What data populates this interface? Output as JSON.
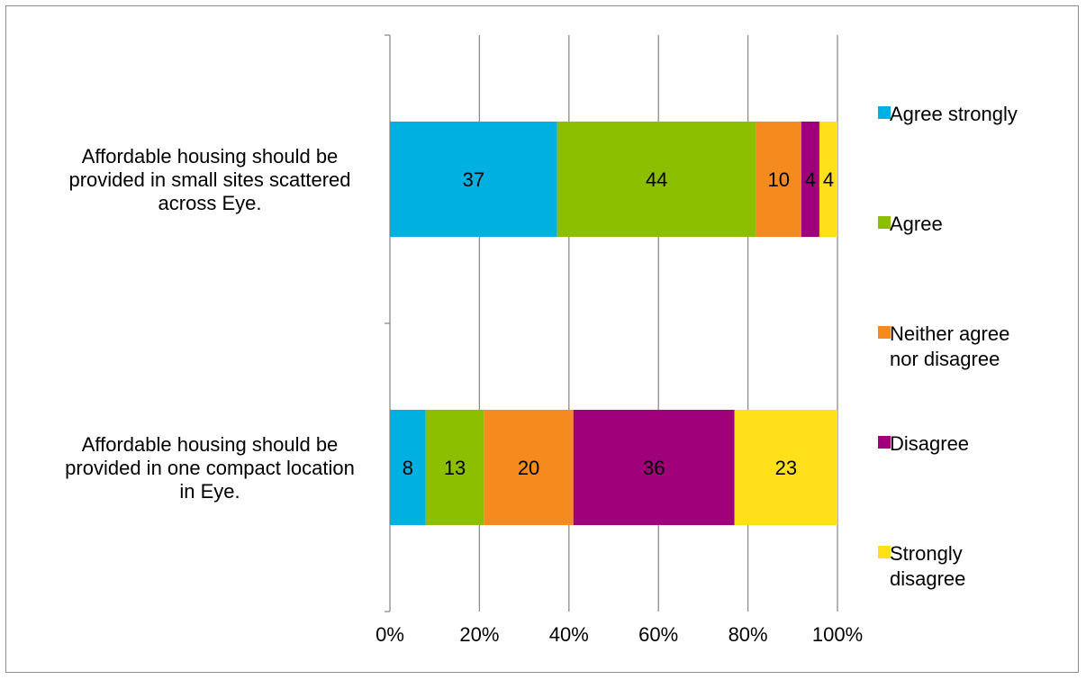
{
  "chart_data": {
    "type": "bar",
    "orientation": "horizontal",
    "stacked": "percent",
    "categories": [
      "Affordable housing should be provided in small sites scattered across Eye.",
      "Affordable housing should be provided in one compact location in Eye."
    ],
    "category_lines": [
      [
        "Affordable housing should be",
        "provided in small sites scattered",
        "across Eye."
      ],
      [
        "Affordable housing should be",
        "provided in one compact location",
        "in Eye."
      ]
    ],
    "series": [
      {
        "name": "Agree strongly",
        "legend_lines": [
          "Agree strongly"
        ],
        "color": "#00b0e0",
        "values": [
          37,
          8
        ]
      },
      {
        "name": "Agree",
        "legend_lines": [
          "Agree"
        ],
        "color": "#8cbf00",
        "values": [
          44,
          13
        ]
      },
      {
        "name": "Neither agree nor disagree",
        "legend_lines": [
          "Neither agree",
          "nor disagree"
        ],
        "color": "#f58a1f",
        "values": [
          10,
          20
        ]
      },
      {
        "name": "Disagree",
        "legend_lines": [
          "Disagree"
        ],
        "color": "#a0007a",
        "values": [
          4,
          36
        ]
      },
      {
        "name": "Strongly disagree",
        "legend_lines": [
          "Strongly",
          "disagree"
        ],
        "color": "#ffe01a",
        "values": [
          4,
          23
        ]
      }
    ],
    "x_ticks": [
      "0%",
      "20%",
      "40%",
      "60%",
      "80%",
      "100%"
    ],
    "xlim": [
      0,
      100
    ],
    "grid": "vertical",
    "legend_position": "right",
    "title": "",
    "xlabel": "",
    "ylabel": ""
  }
}
